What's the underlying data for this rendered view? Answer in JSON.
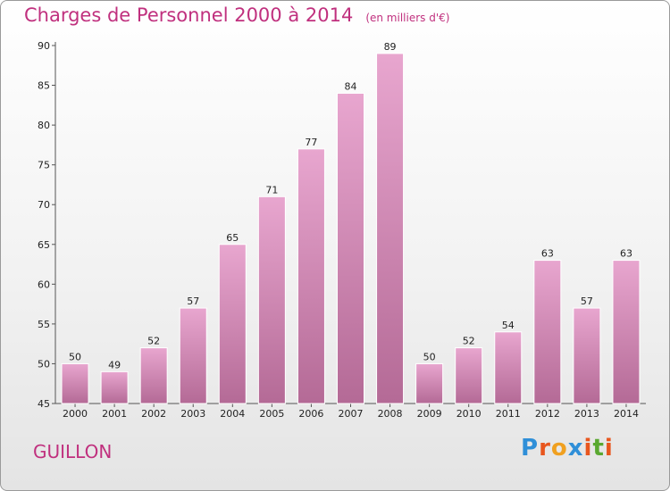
{
  "title": "Charges de Personnel 2000 à 2014",
  "unit_note": "(en milliers d'€)",
  "commune": "GUILLON",
  "logo": {
    "letters": [
      "P",
      "r",
      "o",
      "x",
      "i",
      "t",
      "i"
    ],
    "colors": [
      "#2f8fd8",
      "#e8561e",
      "#f0a020",
      "#2f8fd8",
      "#e8561e",
      "#5aa830",
      "#e8561e"
    ]
  },
  "colors": {
    "title": "#c0307e",
    "bar_top": "#e8a6cf",
    "bar_bottom": "#b46a96"
  },
  "chart_data": {
    "type": "bar",
    "title": "Charges de Personnel 2000 à 2014",
    "categories": [
      "2000",
      "2001",
      "2002",
      "2003",
      "2004",
      "2005",
      "2006",
      "2007",
      "2008",
      "2009",
      "2010",
      "2011",
      "2012",
      "2013",
      "2014"
    ],
    "values": [
      50,
      49,
      52,
      57,
      65,
      71,
      77,
      84,
      89,
      50,
      52,
      54,
      63,
      57,
      63
    ],
    "data_labels": [
      "50",
      "49",
      "52",
      "57",
      "65",
      "71",
      "77",
      "84",
      "89",
      "50",
      "52",
      "54",
      "63",
      "57",
      "63"
    ],
    "yticks": [
      45,
      50,
      55,
      60,
      65,
      70,
      75,
      80,
      85,
      90
    ],
    "ylim": [
      45,
      90
    ],
    "grid": false,
    "legend": "none"
  }
}
